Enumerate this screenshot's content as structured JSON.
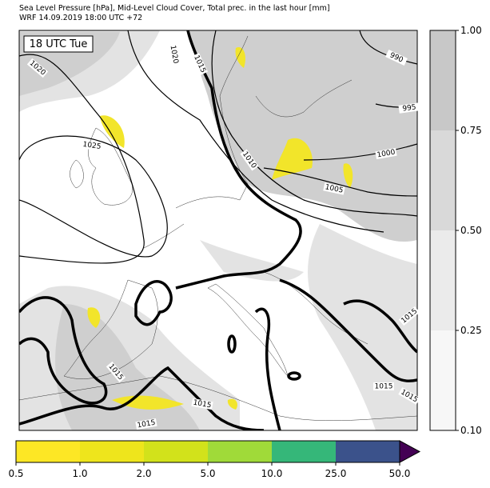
{
  "title": [
    "Sea Level Pressure [hPa], Mid-Level Cloud Cover, Total prec. in the last hour [mm]",
    "WRF 14.09.2019 18:00 UTC +72"
  ],
  "time_label": "18 UTC Tue",
  "contour_labels": [
    "1020",
    "1015",
    "1020",
    "1025",
    "1010",
    "1005",
    "1000",
    "995",
    "990",
    "1015",
    "1015",
    "1015",
    "1015",
    "1015",
    "1015"
  ],
  "cloud_colorbar": {
    "colors": [
      "#f7f7f7",
      "#ebebeb",
      "#d9d9d9",
      "#c8c8c8"
    ],
    "ticks": [
      {
        "value": 0.1,
        "label": "0.10"
      },
      0.25,
      {
        "value": 0.5,
        "label": "0.50"
      },
      0.75,
      {
        "value": 1.0,
        "label": "1.00"
      }
    ]
  },
  "precip_colorbar": {
    "colors": [
      "#fde725",
      "#eee51c",
      "#d2e21b",
      "#a0da39",
      "#35b779",
      "#3b528b"
    ],
    "extend_color": "#440154",
    "ticks": [
      0.5,
      {
        "value": 1.0,
        "label": "1.0"
      },
      {
        "value": 2.0,
        "label": "2.0"
      },
      {
        "value": 5.0,
        "label": "5.0"
      },
      {
        "value": 10.0,
        "label": "10.0"
      },
      {
        "value": 25.0,
        "label": "25.0"
      },
      {
        "value": 50.0,
        "label": "50.0"
      }
    ]
  }
}
